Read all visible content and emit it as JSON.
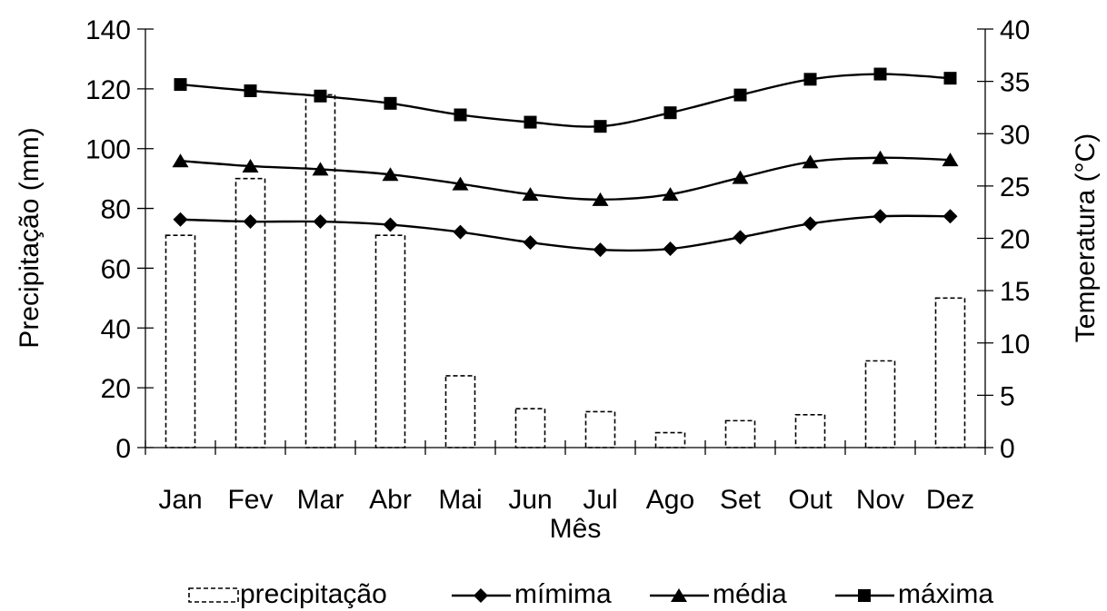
{
  "chart_data": {
    "type": "bar+line",
    "categories": [
      "Jan",
      "Fev",
      "Mar",
      "Abr",
      "Mai",
      "Jun",
      "Jul",
      "Ago",
      "Set",
      "Out",
      "Nov",
      "Dez"
    ],
    "xlabel": "Mês",
    "ylabel_left": "Precipitação (mm)",
    "ylabel_right": "Temperatura (°C)",
    "ylim_left": [
      0,
      140
    ],
    "ylim_right": [
      0,
      40
    ],
    "yticks_left": [
      0,
      20,
      40,
      60,
      80,
      100,
      120,
      140
    ],
    "yticks_right": [
      0,
      5,
      10,
      15,
      20,
      25,
      30,
      35,
      40
    ],
    "grid": false,
    "legend_position": "bottom",
    "bars": {
      "name": "precipitação",
      "axis": "left",
      "values": [
        71,
        90,
        118,
        71,
        24,
        13,
        12,
        5,
        9,
        11,
        29,
        50
      ]
    },
    "series": [
      {
        "name": "mímima",
        "marker": "diamond",
        "axis": "right",
        "values": [
          21.8,
          21.6,
          21.6,
          21.3,
          20.6,
          19.6,
          18.9,
          19.0,
          20.1,
          21.4,
          22.1,
          22.1
        ]
      },
      {
        "name": "média",
        "marker": "triangle",
        "axis": "right",
        "values": [
          27.4,
          26.9,
          26.6,
          26.1,
          25.2,
          24.2,
          23.7,
          24.2,
          25.8,
          27.3,
          27.7,
          27.5
        ]
      },
      {
        "name": "máxima",
        "marker": "square",
        "axis": "right",
        "values": [
          34.7,
          34.1,
          33.6,
          32.9,
          31.8,
          31.1,
          30.7,
          32.0,
          33.7,
          35.2,
          35.7,
          35.3
        ]
      }
    ]
  }
}
